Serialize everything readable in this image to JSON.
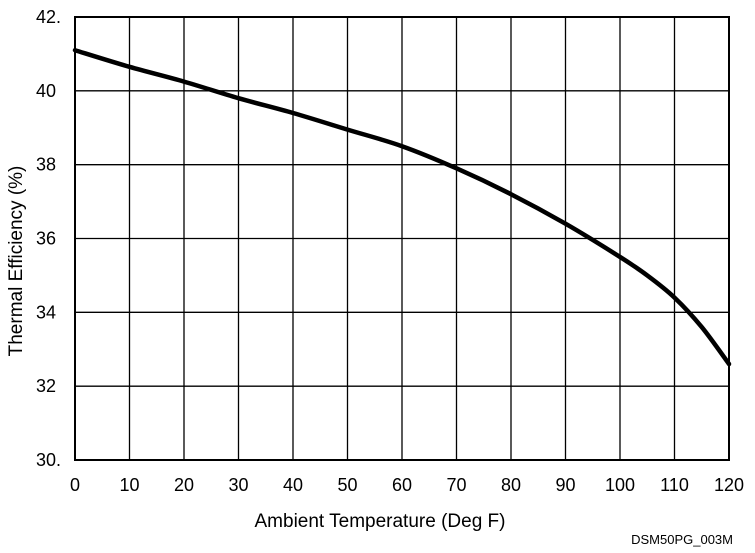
{
  "chart_data": {
    "type": "line",
    "title": "",
    "xlabel": "Ambient Temperature (Deg F)",
    "ylabel": "Thermal Efficiency (%)",
    "xlim": [
      0,
      120
    ],
    "ylim": [
      30,
      42
    ],
    "x_ticks": [
      0,
      10,
      20,
      30,
      40,
      50,
      60,
      70,
      80,
      90,
      100,
      110,
      120
    ],
    "x_tick_labels": [
      "0",
      "10",
      "20",
      "30",
      "40",
      "50",
      "60",
      "70",
      "80",
      "90",
      "100",
      "110",
      "120"
    ],
    "y_ticks": [
      30,
      32,
      34,
      36,
      38,
      40,
      42
    ],
    "y_tick_labels": [
      "30.",
      "32",
      "34",
      "36",
      "38",
      "40",
      "42."
    ],
    "grid": true,
    "legend": "none",
    "series": [
      {
        "color": "#000000",
        "x": [
          0,
          10,
          20,
          30,
          40,
          50,
          60,
          70,
          80,
          90,
          100,
          105,
          110,
          115,
          120
        ],
        "y": [
          41.1,
          40.65,
          40.25,
          39.8,
          39.4,
          38.95,
          38.5,
          37.9,
          37.2,
          36.4,
          35.5,
          35.0,
          34.4,
          33.6,
          32.6
        ]
      }
    ]
  },
  "figure_id": "DSM50PG_003M"
}
